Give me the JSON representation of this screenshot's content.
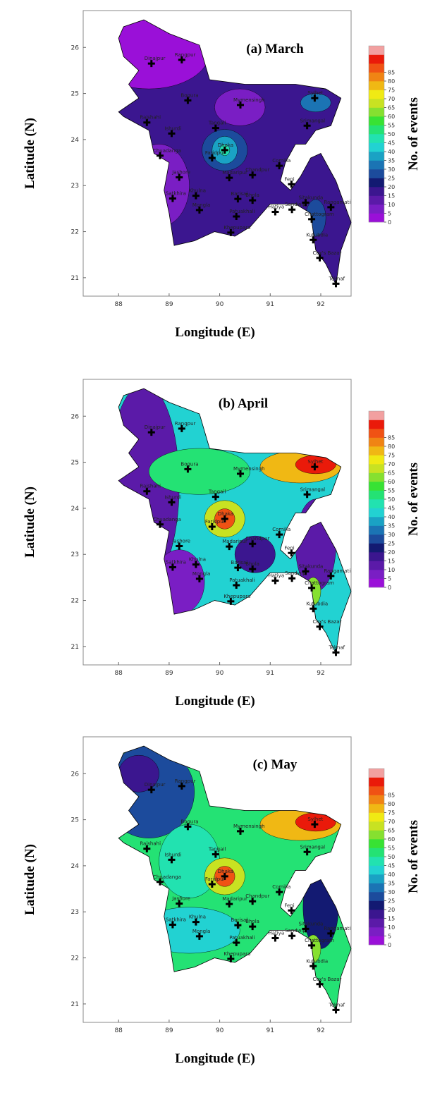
{
  "panels": [
    {
      "title": "(a) March",
      "x_label": "Longitude (E)",
      "y_label": "Latitude (N)",
      "colorbar_label": "No. of events",
      "xlim": [
        87.3,
        92.6
      ],
      "ylim": [
        20.6,
        26.8
      ],
      "xticks": [
        88,
        89,
        90,
        91,
        92
      ],
      "yticks": [
        21,
        22,
        23,
        24,
        25,
        26
      ]
    },
    {
      "title": "(b) April",
      "x_label": "Longitude (E)",
      "y_label": "Latitude (N)",
      "colorbar_label": "No. of events",
      "xlim": [
        87.3,
        92.6
      ],
      "ylim": [
        20.6,
        26.8
      ],
      "xticks": [
        88,
        89,
        90,
        91,
        92
      ],
      "yticks": [
        21,
        22,
        23,
        24,
        25,
        26
      ]
    },
    {
      "title": "(c) May",
      "x_label": "Longitude (E)",
      "y_label": "Latitude (N)",
      "colorbar_label": "No. of events",
      "xlim": [
        87.3,
        92.6
      ],
      "ylim": [
        20.6,
        26.8
      ],
      "xticks": [
        88,
        89,
        90,
        91,
        92
      ],
      "yticks": [
        21,
        22,
        23,
        24,
        25,
        26
      ]
    }
  ],
  "colorbar": {
    "ticks": [
      0,
      5,
      10,
      15,
      20,
      25,
      30,
      35,
      40,
      45,
      50,
      55,
      60,
      65,
      70,
      75,
      80,
      85
    ],
    "colors": [
      "#9a10d8",
      "#7a1ec4",
      "#5b1aa8",
      "#3b168f",
      "#131a72",
      "#1c4b9c",
      "#1b74b4",
      "#1aa2c4",
      "#22d2d2",
      "#22e2b0",
      "#24e274",
      "#38e234",
      "#86e030",
      "#c8e222",
      "#f0ea14",
      "#f0b814",
      "#f08414",
      "#f05214",
      "#ea1a0a",
      "#f2a0a0"
    ]
  },
  "stations": [
    {
      "name": "Dinajpur",
      "lon": 88.65,
      "lat": 25.65
    },
    {
      "name": "Rangpur",
      "lon": 89.25,
      "lat": 25.73
    },
    {
      "name": "Bogura",
      "lon": 89.37,
      "lat": 24.85
    },
    {
      "name": "Mymensingh",
      "lon": 90.41,
      "lat": 24.75
    },
    {
      "name": "Sylhet",
      "lon": 91.88,
      "lat": 24.9
    },
    {
      "name": "Srimangal",
      "lon": 91.73,
      "lat": 24.3
    },
    {
      "name": "Rajshahi",
      "lon": 88.56,
      "lat": 24.37
    },
    {
      "name": "Ishurdi",
      "lon": 89.05,
      "lat": 24.13
    },
    {
      "name": "Tangail",
      "lon": 89.92,
      "lat": 24.25
    },
    {
      "name": "Dhaka",
      "lon": 90.1,
      "lat": 23.77
    },
    {
      "name": "Chuadanga",
      "lon": 88.82,
      "lat": 23.65
    },
    {
      "name": "Faridpur",
      "lon": 89.85,
      "lat": 23.6
    },
    {
      "name": "Comilla",
      "lon": 91.18,
      "lat": 23.43
    },
    {
      "name": "Madaripur",
      "lon": 90.19,
      "lat": 23.17
    },
    {
      "name": "Chandpur",
      "lon": 90.65,
      "lat": 23.23
    },
    {
      "name": "Jashore",
      "lon": 89.2,
      "lat": 23.18
    },
    {
      "name": "Khulna",
      "lon": 89.53,
      "lat": 22.78
    },
    {
      "name": "Satkhira",
      "lon": 89.07,
      "lat": 22.72
    },
    {
      "name": "Mongla",
      "lon": 89.6,
      "lat": 22.47
    },
    {
      "name": "Barisal",
      "lon": 90.36,
      "lat": 22.71
    },
    {
      "name": "Patuakhali",
      "lon": 90.33,
      "lat": 22.33
    },
    {
      "name": "Khepupara",
      "lon": 90.22,
      "lat": 21.98
    },
    {
      "name": "Bhola",
      "lon": 90.65,
      "lat": 22.68
    },
    {
      "name": "Hatiya",
      "lon": 91.1,
      "lat": 22.43
    },
    {
      "name": "Feni",
      "lon": 91.42,
      "lat": 23.03
    },
    {
      "name": "Sandwip",
      "lon": 91.43,
      "lat": 22.48
    },
    {
      "name": "Sitakunda",
      "lon": 91.7,
      "lat": 22.63
    },
    {
      "name": "Rangamati",
      "lon": 92.2,
      "lat": 22.53
    },
    {
      "name": "Chattogram",
      "lon": 91.82,
      "lat": 22.27
    },
    {
      "name": "Kutubdia",
      "lon": 91.85,
      "lat": 21.82
    },
    {
      "name": "Cox's Bazar",
      "lon": 91.98,
      "lat": 21.43
    },
    {
      "name": "Teknaf",
      "lon": 92.3,
      "lat": 20.87
    }
  ]
}
